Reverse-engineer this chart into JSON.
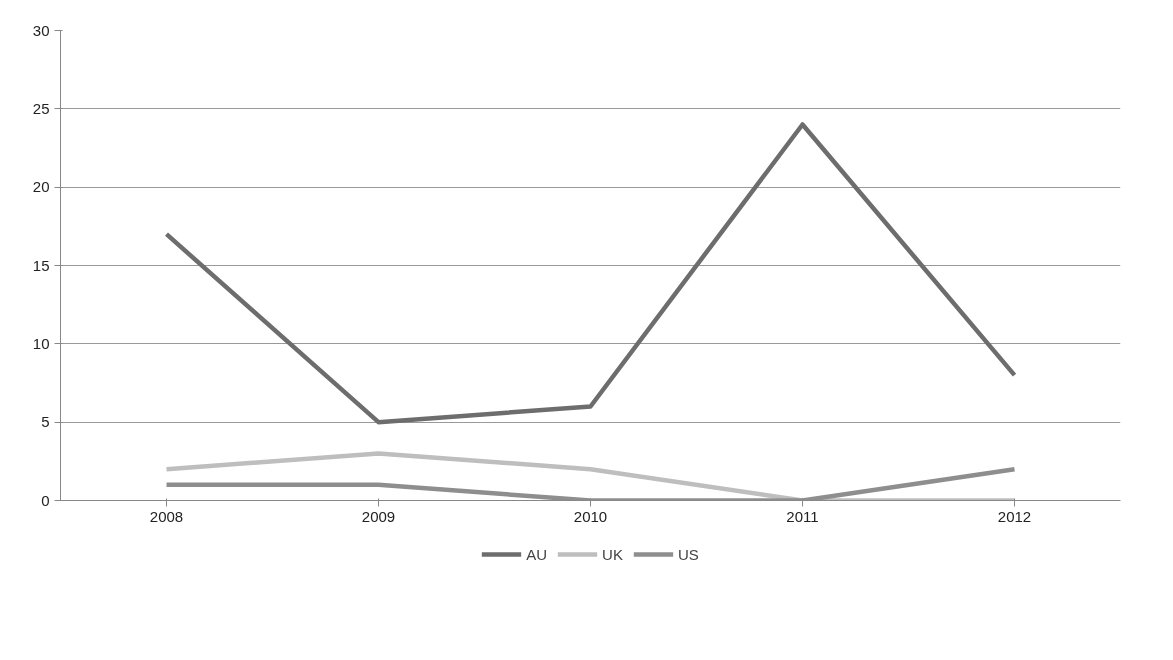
{
  "chart_data": {
    "type": "line",
    "categories": [
      "2008",
      "2009",
      "2010",
      "2011",
      "2012"
    ],
    "series": [
      {
        "name": "AU",
        "color": "#6d6d6d",
        "values": [
          17,
          5,
          6,
          24,
          8
        ]
      },
      {
        "name": "UK",
        "color": "#bebebe",
        "values": [
          2,
          3,
          2,
          0,
          0
        ]
      },
      {
        "name": "US",
        "color": "#8e8e8e",
        "values": [
          1,
          1,
          0,
          0,
          2
        ]
      }
    ],
    "ylim": [
      0,
      30
    ],
    "yticks": [
      0,
      5,
      10,
      15,
      20,
      25,
      30
    ],
    "grid": "y",
    "legend": "bottom",
    "marker": "none",
    "line_style": "solid"
  }
}
